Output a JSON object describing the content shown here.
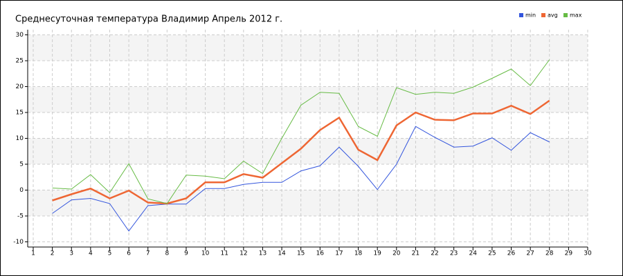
{
  "chart_data": {
    "type": "line",
    "title": "Среднесуточная температура Владимир  Апрель 2012 г.",
    "x": [
      2,
      3,
      4,
      5,
      6,
      7,
      8,
      9,
      10,
      11,
      12,
      13,
      14,
      15,
      16,
      17,
      18,
      19,
      20,
      21,
      22,
      23,
      24,
      25,
      26,
      27,
      28
    ],
    "series": [
      {
        "name": "min",
        "color": "#3355dd",
        "values": [
          -4.5,
          -1.9,
          -1.6,
          -2.6,
          -7.9,
          -3.0,
          -2.7,
          -2.7,
          0.3,
          0.3,
          1.1,
          1.5,
          1.5,
          3.7,
          4.7,
          8.3,
          4.6,
          0.1,
          5.0,
          12.3,
          10.2,
          8.3,
          8.5,
          10.1,
          7.7,
          11.1,
          9.3
        ]
      },
      {
        "name": "avg",
        "color": "#ee6633",
        "values": [
          -2.0,
          -0.8,
          0.3,
          -1.6,
          -0.1,
          -2.4,
          -2.6,
          -1.6,
          1.5,
          1.5,
          3.1,
          2.4,
          5.2,
          8.0,
          11.6,
          14.0,
          7.8,
          5.8,
          12.5,
          15.0,
          13.6,
          13.5,
          14.8,
          14.8,
          16.3,
          14.7,
          17.3
        ]
      },
      {
        "name": "max",
        "color": "#66bb44",
        "values": [
          0.4,
          0.2,
          3.0,
          -0.5,
          5.1,
          -1.7,
          -2.6,
          2.9,
          2.7,
          2.2,
          5.6,
          3.2,
          10.0,
          16.4,
          18.9,
          18.7,
          12.3,
          10.4,
          19.8,
          18.5,
          18.9,
          18.7,
          19.9,
          21.6,
          23.4,
          20.2,
          25.2
        ]
      }
    ],
    "xlim": [
      1,
      30
    ],
    "xticks": [
      1,
      2,
      3,
      4,
      5,
      6,
      7,
      8,
      9,
      10,
      11,
      12,
      13,
      14,
      15,
      16,
      17,
      18,
      19,
      20,
      21,
      22,
      23,
      24,
      25,
      26,
      27,
      28,
      29,
      30
    ],
    "ylim": [
      -11,
      31
    ],
    "yticks": [
      -10,
      -5,
      0,
      5,
      10,
      15,
      20,
      25,
      30
    ],
    "grid": true
  }
}
